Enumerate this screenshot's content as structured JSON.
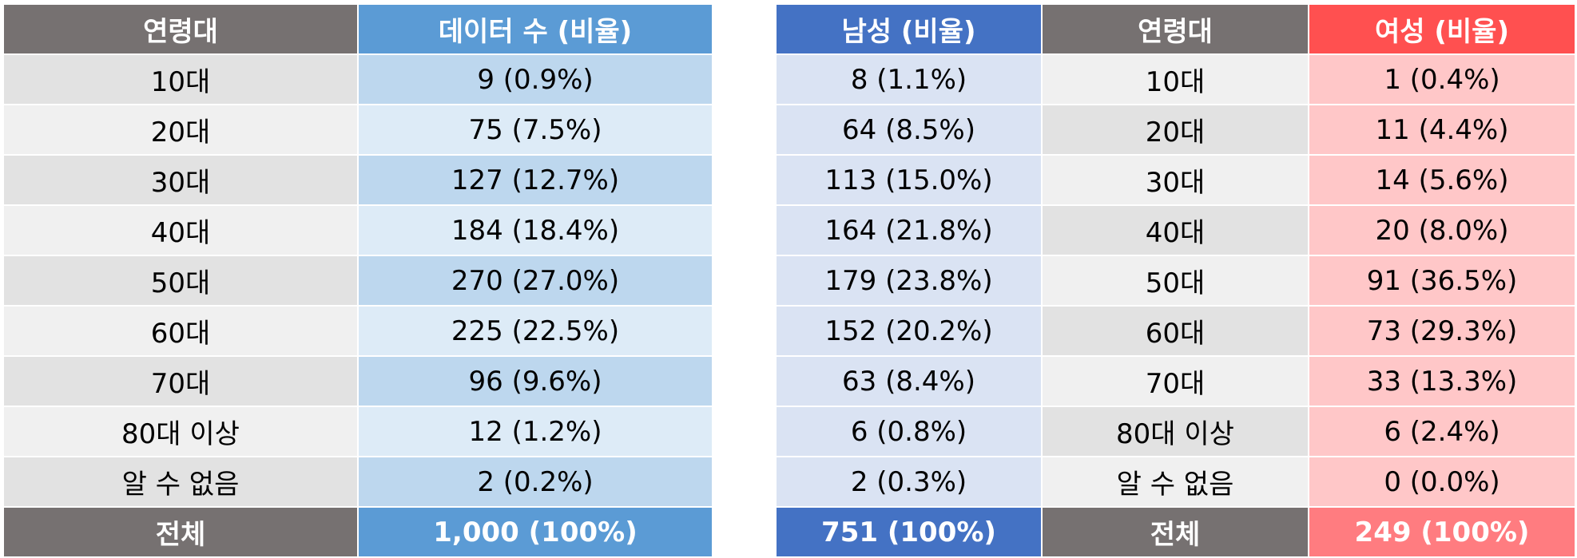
{
  "left_table": {
    "header": {
      "age": "연령대",
      "count": "데이터 수 (비율)"
    },
    "rows": [
      {
        "age": "10대",
        "count": "9 (0.9%)"
      },
      {
        "age": "20대",
        "count": "75 (7.5%)"
      },
      {
        "age": "30대",
        "count": "127 (12.7%)"
      },
      {
        "age": "40대",
        "count": "184 (18.4%)"
      },
      {
        "age": "50대",
        "count": "270 (27.0%)"
      },
      {
        "age": "60대",
        "count": "225 (22.5%)"
      },
      {
        "age": "70대",
        "count": "96 (9.6%)"
      },
      {
        "age": "80대 이상",
        "count": "12 (1.2%)"
      },
      {
        "age": "알 수 없음",
        "count": "2 (0.2%)"
      }
    ],
    "total": {
      "age": "전체",
      "count": "1,000 (100%)"
    }
  },
  "right_table": {
    "header": {
      "male": "남성 (비율)",
      "age": "연령대",
      "female": "여성 (비율)"
    },
    "rows": [
      {
        "male": "8 (1.1%)",
        "age": "10대",
        "female": "1 (0.4%)"
      },
      {
        "male": "64 (8.5%)",
        "age": "20대",
        "female": "11 (4.4%)"
      },
      {
        "male": "113 (15.0%)",
        "age": "30대",
        "female": "14 (5.6%)"
      },
      {
        "male": "164 (21.8%)",
        "age": "40대",
        "female": "20 (8.0%)"
      },
      {
        "male": "179 (23.8%)",
        "age": "50대",
        "female": "91 (36.5%)"
      },
      {
        "male": "152 (20.2%)",
        "age": "60대",
        "female": "73 (29.3%)"
      },
      {
        "male": "63 (8.4%)",
        "age": "70대",
        "female": "33 (13.3%)"
      },
      {
        "male": "6 (0.8%)",
        "age": "80대 이상",
        "female": "6 (2.4%)"
      },
      {
        "male": "2 (0.3%)",
        "age": "알 수 없음",
        "female": "0 (0.0%)"
      }
    ],
    "total": {
      "male": "751 (100%)",
      "age": "전체",
      "female": "249 (100%)"
    }
  },
  "colors": {
    "header_gray": "#767171",
    "header_all": "#5b9bd5",
    "header_male": "#4472c4",
    "header_female": "#ff5050",
    "total_female": "#ff7c80"
  }
}
